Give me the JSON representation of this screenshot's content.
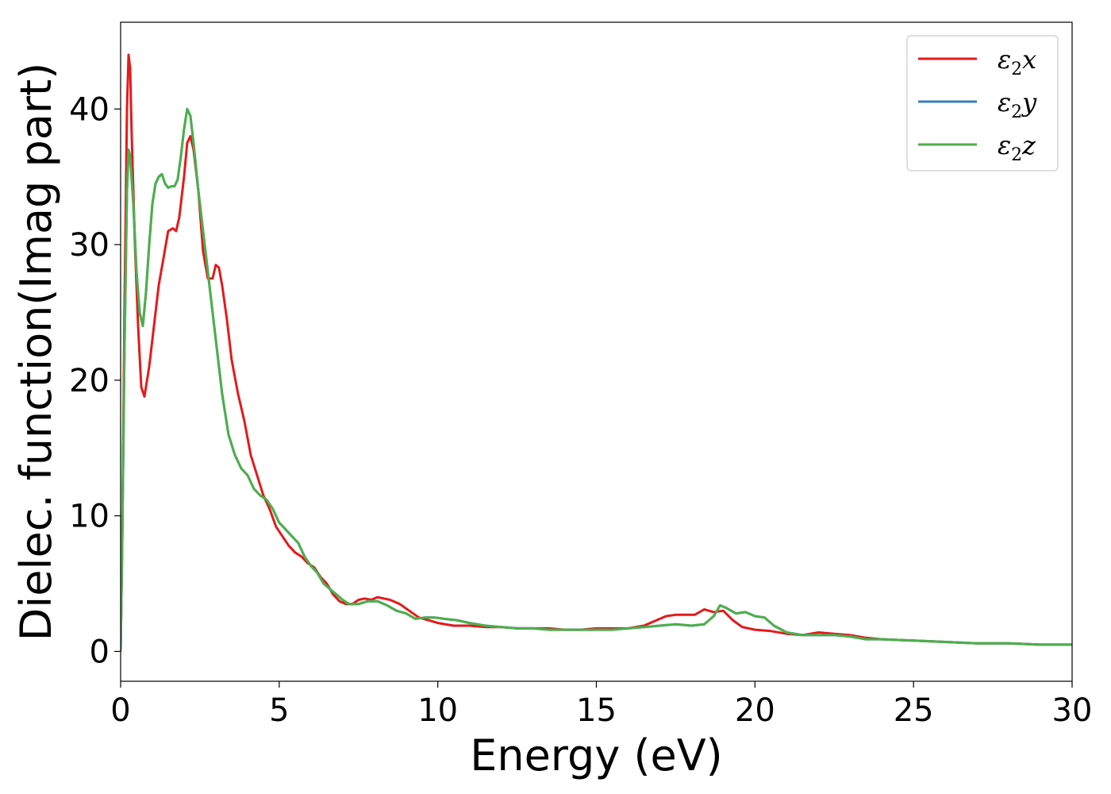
{
  "chart_data": {
    "type": "line",
    "title": "",
    "xlabel": "Energy (eV)",
    "ylabel": "Dielec. function(Imag part)",
    "xlim": [
      0,
      30
    ],
    "ylim": [
      -2.2,
      46.4
    ],
    "xticks": [
      0,
      5,
      10,
      15,
      20,
      25,
      30
    ],
    "yticks": [
      0,
      10,
      20,
      30,
      40
    ],
    "grid": false,
    "legend_position": "top-right",
    "series": [
      {
        "name": "ε₂x",
        "legend_main": "ε",
        "legend_sub": "2",
        "legend_var": "x",
        "color": "#e41a1c",
        "x": [
          0,
          0.05,
          0.12,
          0.2,
          0.25,
          0.3,
          0.35,
          0.45,
          0.55,
          0.65,
          0.75,
          0.9,
          1.05,
          1.2,
          1.35,
          1.5,
          1.65,
          1.75,
          1.85,
          2.0,
          2.1,
          2.2,
          2.3,
          2.45,
          2.6,
          2.75,
          2.9,
          3.0,
          3.1,
          3.2,
          3.35,
          3.5,
          3.7,
          3.9,
          4.1,
          4.3,
          4.5,
          4.7,
          4.9,
          5.1,
          5.3,
          5.5,
          5.7,
          5.9,
          6.1,
          6.3,
          6.5,
          6.7,
          6.9,
          7.1,
          7.3,
          7.5,
          7.7,
          7.9,
          8.1,
          8.3,
          8.5,
          8.8,
          9.1,
          9.4,
          9.7,
          10.0,
          10.5,
          11.0,
          11.5,
          12.0,
          12.5,
          13.0,
          13.5,
          14.0,
          14.5,
          15.0,
          15.5,
          16.0,
          16.5,
          16.9,
          17.2,
          17.5,
          17.8,
          18.1,
          18.4,
          18.7,
          19.0,
          19.3,
          19.6,
          20.0,
          20.5,
          21.0,
          21.5,
          22.0,
          22.5,
          23.0,
          23.5,
          24.0,
          25.0,
          26.0,
          27.0,
          28.0,
          29.0,
          30.0
        ],
        "y": [
          0,
          8,
          25,
          40,
          44,
          43,
          38,
          30,
          24,
          19.5,
          18.8,
          21,
          24,
          27,
          29,
          31,
          31.2,
          31,
          32,
          35,
          37.5,
          38,
          37,
          34,
          29.5,
          27.5,
          27.5,
          28.5,
          28.3,
          27,
          24.5,
          21.5,
          19,
          17,
          14.5,
          13,
          11.5,
          10.5,
          9.2,
          8.5,
          7.8,
          7.3,
          7,
          6.5,
          6.2,
          5.5,
          5,
          4.2,
          3.7,
          3.5,
          3.5,
          3.8,
          3.9,
          3.8,
          4.0,
          3.9,
          3.8,
          3.5,
          3.0,
          2.5,
          2.3,
          2.1,
          1.9,
          1.9,
          1.8,
          1.8,
          1.7,
          1.7,
          1.7,
          1.6,
          1.6,
          1.7,
          1.7,
          1.7,
          1.9,
          2.3,
          2.6,
          2.7,
          2.7,
          2.7,
          3.1,
          2.9,
          3.0,
          2.3,
          1.8,
          1.6,
          1.5,
          1.3,
          1.2,
          1.4,
          1.3,
          1.2,
          1.0,
          0.9,
          0.8,
          0.7,
          0.6,
          0.6,
          0.5,
          0.5
        ]
      },
      {
        "name": "ε₂y",
        "legend_main": "ε",
        "legend_sub": "2",
        "legend_var": "y",
        "color": "#377eb8",
        "x": [
          0,
          0.05,
          0.12,
          0.2,
          0.25,
          0.3,
          0.4,
          0.5,
          0.6,
          0.7,
          0.8,
          0.9,
          1.0,
          1.1,
          1.2,
          1.3,
          1.4,
          1.5,
          1.6,
          1.7,
          1.8,
          1.9,
          2.0,
          2.1,
          2.2,
          2.3,
          2.45,
          2.6,
          2.75,
          2.9,
          3.05,
          3.2,
          3.4,
          3.6,
          3.8,
          4.0,
          4.2,
          4.4,
          4.6,
          4.8,
          5.0,
          5.2,
          5.4,
          5.6,
          5.8,
          6.0,
          6.2,
          6.4,
          6.6,
          6.8,
          7.0,
          7.2,
          7.5,
          7.8,
          8.1,
          8.4,
          8.7,
          9.0,
          9.3,
          9.6,
          9.9,
          10.2,
          10.6,
          11.0,
          11.5,
          12.0,
          12.5,
          13.0,
          13.5,
          14.0,
          14.5,
          15.0,
          15.5,
          16.0,
          16.5,
          17.0,
          17.5,
          18.0,
          18.4,
          18.7,
          18.9,
          19.1,
          19.4,
          19.7,
          20.0,
          20.3,
          20.6,
          21.0,
          21.5,
          22.0,
          22.5,
          23.0,
          23.5,
          24.0,
          25.0,
          26.0,
          27.0,
          28.0,
          29.0,
          30.0
        ],
        "y": [
          0,
          8,
          22,
          34,
          37,
          36.5,
          33,
          28,
          25,
          24,
          26.5,
          30,
          33,
          34.5,
          35,
          35.2,
          34.5,
          34.2,
          34.3,
          34.3,
          34.8,
          36.5,
          38.5,
          40,
          39.5,
          37.5,
          34,
          31,
          28,
          25,
          22,
          19,
          16,
          14.5,
          13.5,
          13,
          12,
          11.5,
          11.2,
          10.5,
          9.5,
          9.0,
          8.5,
          8.0,
          7.0,
          6.3,
          5.8,
          5.0,
          4.6,
          4.2,
          3.8,
          3.5,
          3.5,
          3.7,
          3.7,
          3.4,
          3.0,
          2.8,
          2.4,
          2.5,
          2.5,
          2.4,
          2.3,
          2.1,
          1.9,
          1.8,
          1.7,
          1.7,
          1.6,
          1.6,
          1.6,
          1.6,
          1.6,
          1.7,
          1.8,
          1.9,
          2.0,
          1.9,
          2.0,
          2.6,
          3.4,
          3.2,
          2.8,
          2.9,
          2.6,
          2.5,
          1.9,
          1.4,
          1.2,
          1.2,
          1.2,
          1.1,
          0.9,
          0.9,
          0.8,
          0.7,
          0.6,
          0.6,
          0.5,
          0.5
        ]
      },
      {
        "name": "ε₂z",
        "legend_main": "ε",
        "legend_sub": "2",
        "legend_var": "z",
        "color": "#4daf4a",
        "x": [
          0,
          0.05,
          0.12,
          0.2,
          0.25,
          0.3,
          0.4,
          0.5,
          0.6,
          0.7,
          0.8,
          0.9,
          1.0,
          1.1,
          1.2,
          1.3,
          1.4,
          1.5,
          1.6,
          1.7,
          1.8,
          1.9,
          2.0,
          2.1,
          2.2,
          2.3,
          2.45,
          2.6,
          2.75,
          2.9,
          3.05,
          3.2,
          3.4,
          3.6,
          3.8,
          4.0,
          4.2,
          4.4,
          4.6,
          4.8,
          5.0,
          5.2,
          5.4,
          5.6,
          5.8,
          6.0,
          6.2,
          6.4,
          6.6,
          6.8,
          7.0,
          7.2,
          7.5,
          7.8,
          8.1,
          8.4,
          8.7,
          9.0,
          9.3,
          9.6,
          9.9,
          10.2,
          10.6,
          11.0,
          11.5,
          12.0,
          12.5,
          13.0,
          13.5,
          14.0,
          14.5,
          15.0,
          15.5,
          16.0,
          16.5,
          17.0,
          17.5,
          18.0,
          18.4,
          18.7,
          18.9,
          19.1,
          19.4,
          19.7,
          20.0,
          20.3,
          20.6,
          21.0,
          21.5,
          22.0,
          22.5,
          23.0,
          23.5,
          24.0,
          25.0,
          26.0,
          27.0,
          28.0,
          29.0,
          30.0
        ],
        "y": [
          0,
          8,
          22,
          34,
          37,
          36.5,
          33,
          28,
          25,
          24,
          26.5,
          30,
          33,
          34.5,
          35,
          35.2,
          34.5,
          34.2,
          34.3,
          34.3,
          34.8,
          36.5,
          38.5,
          40,
          39.5,
          37.5,
          34,
          31,
          28,
          25,
          22,
          19,
          16,
          14.5,
          13.5,
          13,
          12,
          11.5,
          11.2,
          10.5,
          9.5,
          9.0,
          8.5,
          8.0,
          7.0,
          6.3,
          5.8,
          5.0,
          4.6,
          4.2,
          3.8,
          3.5,
          3.5,
          3.7,
          3.7,
          3.4,
          3.0,
          2.8,
          2.4,
          2.5,
          2.5,
          2.4,
          2.3,
          2.1,
          1.9,
          1.8,
          1.7,
          1.7,
          1.6,
          1.6,
          1.6,
          1.6,
          1.6,
          1.7,
          1.8,
          1.9,
          2.0,
          1.9,
          2.0,
          2.6,
          3.4,
          3.2,
          2.8,
          2.9,
          2.6,
          2.5,
          1.9,
          1.4,
          1.2,
          1.2,
          1.2,
          1.1,
          0.9,
          0.9,
          0.8,
          0.7,
          0.6,
          0.6,
          0.5,
          0.5
        ]
      }
    ]
  }
}
